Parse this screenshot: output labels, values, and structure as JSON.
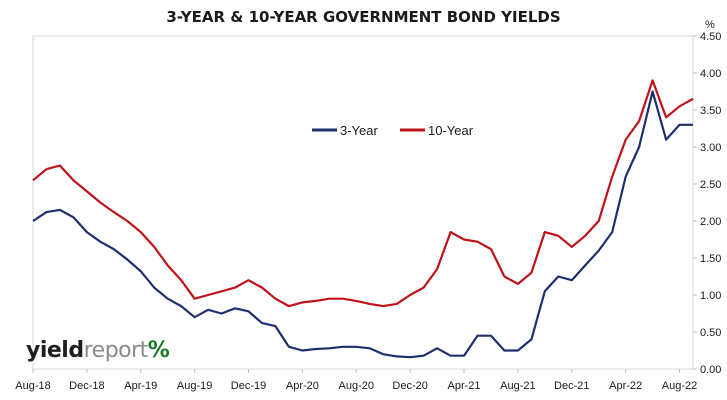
{
  "chart_data": {
    "type": "line",
    "title": "3-YEAR & 10-YEAR GOVERNMENT BOND YIELDS",
    "ylabel": "%",
    "ylim": [
      0,
      4.5
    ],
    "yticks": [
      "0.00",
      "0.50",
      "1.00",
      "1.50",
      "2.00",
      "2.50",
      "3.00",
      "3.50",
      "4.00",
      "4.50"
    ],
    "xticks": [
      "Aug-18",
      "Dec-18",
      "Apr-19",
      "Aug-19",
      "Dec-19",
      "Apr-20",
      "Aug-20",
      "Dec-20",
      "Apr-21",
      "Aug-21",
      "Dec-21",
      "Apr-22",
      "Aug-22"
    ],
    "legend_position": "upper-center",
    "x": [
      "Aug-18",
      "Sep-18",
      "Oct-18",
      "Nov-18",
      "Dec-18",
      "Jan-19",
      "Feb-19",
      "Mar-19",
      "Apr-19",
      "May-19",
      "Jun-19",
      "Jul-19",
      "Aug-19",
      "Sep-19",
      "Oct-19",
      "Nov-19",
      "Dec-19",
      "Jan-20",
      "Feb-20",
      "Mar-20",
      "Apr-20",
      "May-20",
      "Jun-20",
      "Jul-20",
      "Aug-20",
      "Sep-20",
      "Oct-20",
      "Nov-20",
      "Dec-20",
      "Jan-21",
      "Feb-21",
      "Mar-21",
      "Apr-21",
      "May-21",
      "Jun-21",
      "Jul-21",
      "Aug-21",
      "Sep-21",
      "Oct-21",
      "Nov-21",
      "Dec-21",
      "Jan-22",
      "Feb-22",
      "Mar-22",
      "Apr-22",
      "May-22",
      "Jun-22",
      "Jul-22",
      "Aug-22",
      "Sep-22"
    ],
    "series": [
      {
        "name": "3-Year",
        "color": "#1f2f6e",
        "values": [
          2.0,
          2.12,
          2.15,
          2.05,
          1.85,
          1.72,
          1.62,
          1.48,
          1.32,
          1.1,
          0.95,
          0.85,
          0.7,
          0.8,
          0.75,
          0.82,
          0.78,
          0.62,
          0.58,
          0.3,
          0.25,
          0.27,
          0.28,
          0.3,
          0.3,
          0.28,
          0.2,
          0.17,
          0.16,
          0.18,
          0.28,
          0.18,
          0.18,
          0.45,
          0.45,
          0.25,
          0.25,
          0.4,
          1.05,
          1.25,
          1.2,
          1.4,
          1.6,
          1.85,
          2.6,
          3.0,
          3.75,
          3.1,
          3.3,
          3.3
        ]
      },
      {
        "name": "10-Year",
        "color": "#c0121a",
        "values": [
          2.55,
          2.7,
          2.75,
          2.55,
          2.4,
          2.25,
          2.12,
          2.0,
          1.85,
          1.65,
          1.4,
          1.2,
          0.95,
          1.0,
          1.05,
          1.1,
          1.2,
          1.1,
          0.95,
          0.85,
          0.9,
          0.92,
          0.95,
          0.95,
          0.92,
          0.88,
          0.85,
          0.88,
          1.0,
          1.1,
          1.35,
          1.85,
          1.75,
          1.72,
          1.62,
          1.25,
          1.15,
          1.3,
          1.85,
          1.8,
          1.65,
          1.8,
          2.0,
          2.6,
          3.1,
          3.35,
          3.9,
          3.4,
          3.55,
          3.65
        ]
      }
    ]
  },
  "logo": {
    "part1": "yield",
    "part2": "report",
    "pct": "%"
  }
}
